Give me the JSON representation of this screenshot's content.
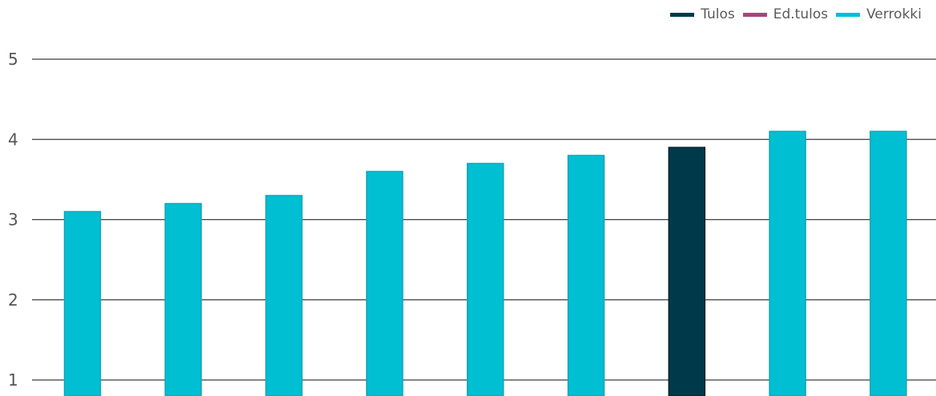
{
  "chart_data": {
    "type": "bar",
    "title": "",
    "xlabel": "",
    "ylabel": "",
    "ylim": [
      1,
      5
    ],
    "yticks": [
      "1",
      "2",
      "3",
      "4",
      "5"
    ],
    "grid": true,
    "legend_position": "top-right",
    "legend": [
      {
        "name": "Tulos",
        "color": "#003a4a"
      },
      {
        "name": "Ed.tulos",
        "color": "#a8457a"
      },
      {
        "name": "Verrokki",
        "color": "#00bfd3"
      }
    ],
    "bars": [
      {
        "series": "Verrokki",
        "value": 3.1
      },
      {
        "series": "Verrokki",
        "value": 3.2
      },
      {
        "series": "Verrokki",
        "value": 3.3
      },
      {
        "series": "Verrokki",
        "value": 3.6
      },
      {
        "series": "Verrokki",
        "value": 3.7
      },
      {
        "series": "Verrokki",
        "value": 3.8
      },
      {
        "series": "Tulos",
        "value": 3.9
      },
      {
        "series": "Verrokki",
        "value": 4.1
      },
      {
        "series": "Verrokki",
        "value": 4.1
      }
    ]
  }
}
